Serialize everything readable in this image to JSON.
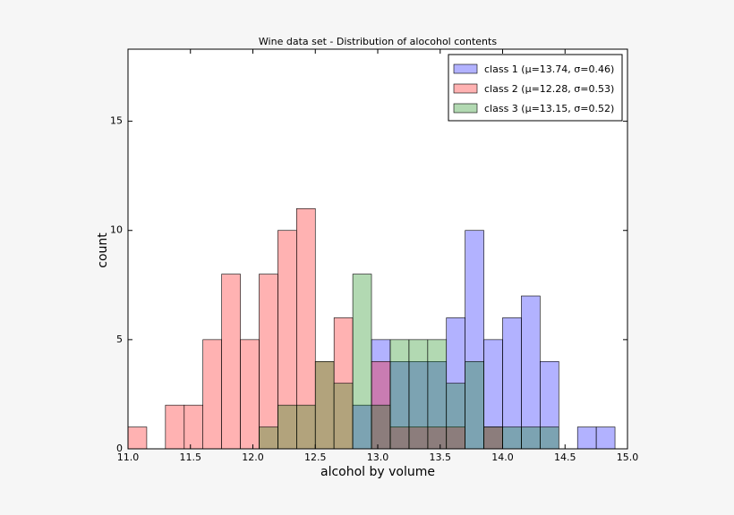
{
  "chart_data": {
    "type": "histogram",
    "title": "Wine data set - Distribution of alocohol contents",
    "x_label": "alcohol by volume",
    "y_label": "count",
    "bins": [
      11,
      11.15,
      11.3,
      11.45,
      11.6,
      11.75,
      11.9,
      12.05,
      12.2,
      12.35,
      12.5,
      12.65,
      12.8,
      12.95,
      13.1,
      13.25,
      13.4,
      13.55,
      13.7,
      13.85,
      14,
      14.15,
      14.3,
      14.45,
      14.6,
      14.75,
      14.9
    ],
    "series": [
      {
        "name": "class 1 (μ=13.74, σ=0.46)",
        "color": "#0000ff",
        "values": [
          0,
          0,
          0,
          0,
          0,
          0,
          0,
          0,
          0,
          0,
          0,
          0,
          2,
          5,
          4,
          4,
          4,
          6,
          10,
          5,
          6,
          7,
          4,
          0,
          1,
          1
        ]
      },
      {
        "name": "class 2 (μ=12.28, σ=0.53)",
        "color": "#ff0000",
        "values": [
          1,
          0,
          2,
          2,
          5,
          8,
          5,
          8,
          10,
          11,
          4,
          6,
          0,
          4,
          1,
          1,
          1,
          1,
          0,
          1,
          0,
          0,
          0,
          0,
          0,
          0
        ]
      },
      {
        "name": "class 3 (μ=13.15, σ=0.52)",
        "color": "#008000",
        "values": [
          0,
          0,
          0,
          0,
          0,
          0,
          0,
          1,
          2,
          2,
          4,
          3,
          8,
          2,
          5,
          5,
          5,
          3,
          4,
          1,
          1,
          1,
          1,
          0,
          0,
          0
        ]
      }
    ],
    "opacity": 0.3,
    "xlim": [
      11,
      15
    ],
    "xticks": [
      {
        "value": 11,
        "label": "11.0"
      },
      {
        "value": 11.5,
        "label": "11.5"
      },
      {
        "value": 12,
        "label": "12.0"
      },
      {
        "value": 12.5,
        "label": "12.5"
      },
      {
        "value": 13,
        "label": "13.0"
      },
      {
        "value": 13.5,
        "label": "13.5"
      },
      {
        "value": 14,
        "label": "14.0"
      },
      {
        "value": 14.5,
        "label": "14.5"
      },
      {
        "value": 15,
        "label": "15.0"
      }
    ],
    "ylim": [
      0,
      18.3
    ],
    "yticks": [
      0,
      5,
      10,
      15
    ],
    "grid": false,
    "legend": "upper right"
  }
}
